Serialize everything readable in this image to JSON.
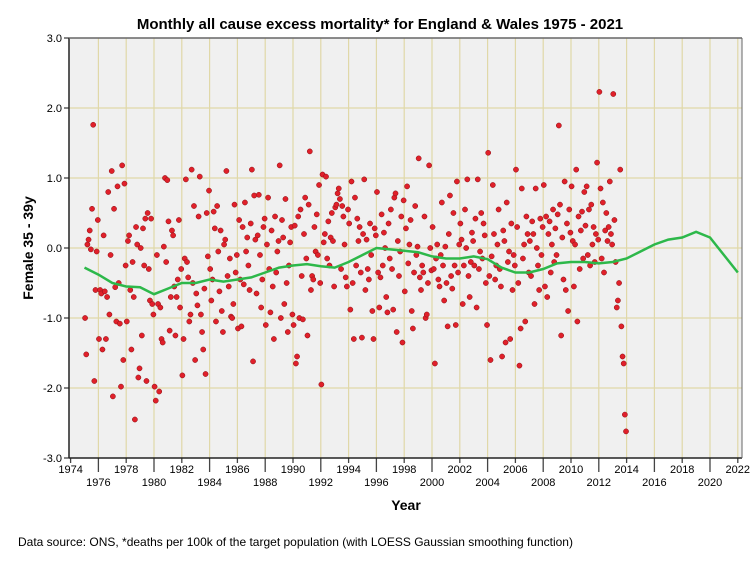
{
  "chart_data": {
    "type": "scatter",
    "title": "Monthly all cause excess mortality* for England & Wales 1975 - 2021",
    "xlabel": "Year",
    "ylabel": "Female 35 - 39y",
    "footnote": "Data source: ONS, *deaths per 100k of the target population (with LOESS Gaussian smoothing function)",
    "xlim": [
      1974,
      2022
    ],
    "ylim": [
      -3.0,
      3.0
    ],
    "xticks": [
      1974,
      1976,
      1978,
      1980,
      1982,
      1984,
      1986,
      1988,
      1990,
      1992,
      1994,
      1996,
      1998,
      2000,
      2002,
      2004,
      2006,
      2008,
      2010,
      2012,
      2014,
      2016,
      2018,
      2020,
      2022
    ],
    "yticks": [
      "-3.0",
      "-2.0",
      "-1.0",
      "0.0",
      "1.0",
      "2.0",
      "3.0"
    ],
    "grid": true,
    "colors": {
      "points": "#e0202a",
      "point_edge": "#8a1015",
      "loess": "#2db84a",
      "grid": "#e0d8a8",
      "plot_bg": "#f0f0f0"
    },
    "start_year": 1975,
    "monthly_values": [
      -1.0,
      -1.52,
      0.05,
      0.12,
      0.25,
      -0.02,
      0.56,
      1.76,
      -1.9,
      -0.6,
      -0.05,
      0.4,
      -1.3,
      -0.6,
      -0.65,
      -1.45,
      0.18,
      -0.62,
      -1.3,
      -0.7,
      0.8,
      -0.95,
      -0.1,
      1.1,
      -2.12,
      0.56,
      -0.56,
      -1.05,
      0.88,
      -0.5,
      -1.08,
      -1.98,
      1.18,
      -1.6,
      0.92,
      -0.25,
      -1.05,
      0.1,
      0.18,
      -0.6,
      -1.45,
      -0.2,
      -0.7,
      -2.45,
      0.3,
      0.05,
      -1.85,
      -1.72,
      0.0,
      -1.25,
      0.28,
      -0.25,
      0.42,
      -1.9,
      0.5,
      -0.3,
      -0.75,
      0.42,
      -0.8,
      -0.95,
      -1.98,
      -2.18,
      -0.1,
      -0.8,
      -2.05,
      -0.85,
      -1.3,
      -1.35,
      0.02,
      1.0,
      -0.2,
      0.97,
      0.38,
      -1.18,
      -0.7,
      0.25,
      0.18,
      -0.55,
      -1.25,
      -0.7,
      -0.45,
      0.4,
      -0.85,
      -0.3,
      -1.82,
      -1.3,
      -0.15,
      0.98,
      -0.2,
      -0.42,
      -1.05,
      -0.95,
      1.12,
      -0.5,
      0.6,
      -1.6,
      -0.65,
      -0.82,
      0.45,
      1.02,
      -0.95,
      -1.2,
      -1.45,
      -0.58,
      -1.8,
      0.5,
      -0.12,
      0.82,
      -0.3,
      -0.75,
      -0.45,
      0.52,
      0.28,
      -1.05,
      0.6,
      -0.05,
      -0.62,
      0.25,
      -0.9,
      -1.2,
      0.05,
      0.12,
      1.1,
      -0.4,
      -0.55,
      -0.15,
      -0.98,
      -1.0,
      -0.8,
      0.62,
      -0.35,
      -0.1,
      -1.15,
      0.4,
      -0.45,
      -1.12,
      0.3,
      -0.52,
      0.65,
      -0.05,
      0.15,
      -0.25,
      -0.6,
      0.35,
      1.12,
      -1.62,
      0.75,
      0.12,
      -0.65,
      0.18,
      0.76,
      -0.1,
      -0.85,
      -0.45,
      0.3,
      0.42,
      -1.1,
      0.05,
      0.72,
      -0.3,
      -0.92,
      0.25,
      -0.55,
      -1.3,
      0.45,
      -0.35,
      -0.05,
      0.1,
      1.18,
      -1.0,
      0.4,
      0.15,
      -0.8,
      0.7,
      -0.5,
      -1.2,
      -0.25,
      0.08,
      0.3,
      -0.95,
      -1.1,
      0.32,
      -1.65,
      -1.55,
      0.45,
      -1.0,
      0.55,
      -0.4,
      -1.02,
      0.2,
      0.72,
      -0.15,
      -1.25,
      0.62,
      1.38,
      -0.6,
      -0.4,
      -0.45,
      0.3,
      -0.05,
      0.48,
      -0.1,
      0.9,
      -0.5,
      -1.95,
      1.05,
      0.08,
      0.2,
      1.02,
      -0.15,
      0.38,
      -0.25,
      0.15,
      0.5,
      0.1,
      -0.55,
      0.58,
      0.62,
      0.78,
      0.85,
      0.7,
      -0.3,
      0.6,
      0.45,
      0.05,
      -0.42,
      -0.55,
      0.55,
      0.35,
      -0.88,
      0.95,
      -0.5,
      -1.3,
      0.72,
      -0.25,
      0.42,
      0.1,
      0.3,
      -0.35,
      -1.28,
      0.2,
      0.98,
      -0.6,
      0.12,
      -0.3,
      -0.45,
      0.35,
      -0.1,
      -0.9,
      -1.3,
      0.28,
      0.18,
      0.8,
      -0.35,
      -0.85,
      -0.42,
      0.48,
      -0.25,
      0.22,
      0.0,
      -0.7,
      -0.92,
      0.35,
      -0.15,
      0.55,
      -0.3,
      -0.88,
      0.72,
      0.78,
      -1.2,
      0.1,
      -0.4,
      -0.05,
      0.45,
      -1.35,
      0.68,
      -0.62,
      0.28,
      0.88,
      -0.22,
      0.05,
      0.4,
      -0.9,
      -1.15,
      -0.35,
      0.6,
      -0.1,
      0.02,
      1.28,
      -0.42,
      -0.6,
      -0.25,
      -0.35,
      0.45,
      -1.0,
      -0.95,
      -0.5,
      1.18,
      0.0,
      -0.32,
      0.3,
      -0.3,
      -1.65,
      -0.15,
      0.05,
      -0.45,
      -0.55,
      -0.1,
      0.65,
      -0.25,
      -0.75,
      0.02,
      -0.5,
      -1.12,
      0.2,
      0.75,
      -0.4,
      -0.58,
      0.5,
      -0.25,
      -1.1,
      0.95,
      -0.35,
      0.05,
      0.35,
      0.12,
      -0.8,
      -0.25,
      0.55,
      0.0,
      0.98,
      -0.4,
      -0.7,
      -0.2,
      0.22,
      0.1,
      -0.25,
      0.42,
      -0.85,
      0.98,
      -0.3,
      -0.05,
      0.5,
      -0.15,
      0.35,
      0.18,
      -0.5,
      -1.1,
      1.36,
      -0.4,
      -1.6,
      -0.12,
      0.9,
      0.2,
      -0.45,
      -0.25,
      0.05,
      0.55,
      -0.3,
      -0.55,
      -1.55,
      0.25,
      0.1,
      -1.35,
      0.65,
      -0.2,
      -0.05,
      -1.3,
      0.35,
      -0.6,
      -0.1,
      -0.25,
      1.12,
      0.3,
      -0.5,
      -1.68,
      -1.15,
      0.85,
      -0.15,
      0.05,
      -1.05,
      0.45,
      0.2,
      -0.35,
      0.1,
      -0.4,
      0.38,
      0.2,
      -0.8,
      0.85,
      0.0,
      -0.25,
      -0.6,
      0.42,
      -0.1,
      0.3,
      0.9,
      -0.55,
      0.45,
      -0.7,
      0.2,
      0.38,
      -0.35,
      0.05,
      0.55,
      -0.2,
      0.28,
      -0.1,
      0.48,
      1.75,
      0.62,
      -1.25,
      0.15,
      -0.45,
      0.95,
      -0.6,
      0.35,
      -0.9,
      0.55,
      0.22,
      0.88,
      0.1,
      -0.55,
      0.05,
      1.12,
      -1.05,
      0.45,
      -0.3,
      0.25,
      0.52,
      -0.15,
      0.8,
      0.32,
      0.88,
      -0.1,
      0.55,
      -0.25,
      0.62,
      0.05,
      0.3,
      -0.2,
      0.2,
      1.22,
      0.12,
      2.23,
      0.85,
      -0.15,
      0.65,
      -0.35,
      0.25,
      0.5,
      0.1,
      0.3,
      0.95,
      0.2,
      0.05,
      2.2,
      0.4,
      -0.2,
      -0.85,
      -0.75,
      -0.5,
      1.12,
      -1.12,
      -1.55,
      -1.65,
      -2.38,
      -2.62
    ],
    "loess": {
      "x": [
        1975,
        1976,
        1977,
        1978,
        1979,
        1980,
        1981,
        1982,
        1983,
        1984,
        1985,
        1986,
        1987,
        1988,
        1989,
        1990,
        1991,
        1992,
        1993,
        1994,
        1995,
        1996,
        1997,
        1998,
        1999,
        2000,
        2001,
        2002,
        2003,
        2004,
        2005,
        2006,
        2007,
        2008,
        2009,
        2010,
        2011,
        2012,
        2013,
        2014,
        2015,
        2016,
        2017,
        2018,
        2019,
        2020,
        2021,
        2022
      ],
      "y": [
        -0.28,
        -0.38,
        -0.5,
        -0.55,
        -0.56,
        -0.66,
        -0.58,
        -0.5,
        -0.5,
        -0.45,
        -0.48,
        -0.45,
        -0.42,
        -0.35,
        -0.28,
        -0.25,
        -0.23,
        -0.26,
        -0.28,
        -0.2,
        -0.1,
        0.0,
        -0.02,
        -0.04,
        -0.06,
        -0.12,
        -0.15,
        -0.15,
        -0.12,
        -0.16,
        -0.28,
        -0.35,
        -0.35,
        -0.3,
        -0.22,
        -0.2,
        -0.2,
        -0.22,
        -0.2,
        -0.15,
        -0.05,
        0.05,
        0.12,
        0.15,
        0.23,
        0.15,
        -0.1,
        -0.35
      ]
    }
  }
}
